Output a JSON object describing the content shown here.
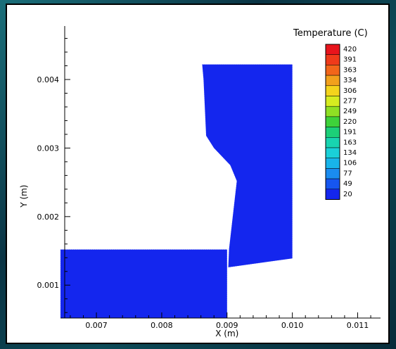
{
  "chart_data": {
    "type": "heatmap",
    "title": "",
    "xlabel": "X (m)",
    "ylabel": "Y (m)",
    "xlim": [
      0.00645,
      0.01135
    ],
    "ylim": [
      0.00052,
      0.00478
    ],
    "x_ticks": [
      {
        "value": 0.007,
        "label": "0.007"
      },
      {
        "value": 0.008,
        "label": "0.008"
      },
      {
        "value": 0.009,
        "label": "0.009"
      },
      {
        "value": 0.01,
        "label": "0.010"
      },
      {
        "value": 0.011,
        "label": "0.011"
      }
    ],
    "y_ticks": [
      {
        "value": 0.001,
        "label": "0.001"
      },
      {
        "value": 0.002,
        "label": "0.002"
      },
      {
        "value": 0.003,
        "label": "0.003"
      },
      {
        "value": 0.004,
        "label": "0.004"
      }
    ],
    "legend": {
      "title": "Temperature (C)",
      "placement": "top-right",
      "levels": [
        {
          "label": "420",
          "color": "#e8141c"
        },
        {
          "label": "391",
          "color": "#ef3a1a"
        },
        {
          "label": "363",
          "color": "#f2661a"
        },
        {
          "label": "334",
          "color": "#f2a11c"
        },
        {
          "label": "306",
          "color": "#f4d41c"
        },
        {
          "label": "277",
          "color": "#d6ec20"
        },
        {
          "label": "249",
          "color": "#8fe024"
        },
        {
          "label": "220",
          "color": "#3ed23a"
        },
        {
          "label": "191",
          "color": "#1ccf78"
        },
        {
          "label": "163",
          "color": "#18d4b0"
        },
        {
          "label": "134",
          "color": "#1ad0d8"
        },
        {
          "label": "106",
          "color": "#18b4ea"
        },
        {
          "label": "77",
          "color": "#1a8cf0"
        },
        {
          "label": "49",
          "color": "#1656f0"
        },
        {
          "label": "20",
          "color": "#1426ee"
        }
      ]
    },
    "regions": [
      {
        "name": "lower-plate",
        "value_label": "20",
        "color": "#1426ee",
        "polygon": [
          [
            0.00645,
            0.00152
          ],
          [
            0.009,
            0.00152
          ],
          [
            0.009,
            0.00052
          ],
          [
            0.00645,
            0.00052
          ]
        ]
      },
      {
        "name": "upper-plate",
        "value_label": "20",
        "color": "#1426ee",
        "polygon": [
          [
            0.00862,
            0.00422
          ],
          [
            0.01,
            0.00422
          ],
          [
            0.01,
            0.00139
          ],
          [
            0.00902,
            0.00126
          ],
          [
            0.00903,
            0.00152
          ],
          [
            0.00915,
            0.00252
          ],
          [
            0.00905,
            0.00275
          ],
          [
            0.0088,
            0.003
          ],
          [
            0.00868,
            0.00318
          ],
          [
            0.00864,
            0.004
          ]
        ]
      }
    ]
  }
}
